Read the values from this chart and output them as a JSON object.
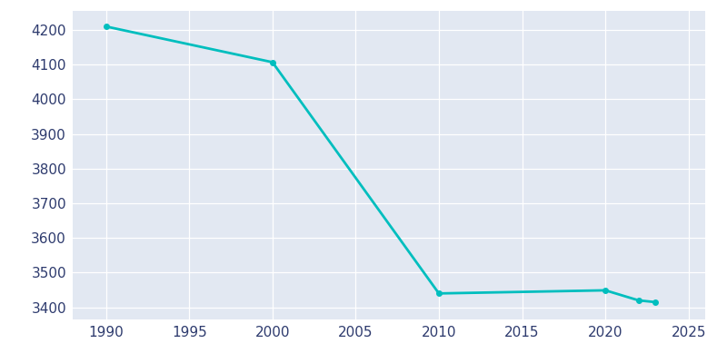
{
  "years": [
    1990,
    2000,
    2010,
    2020,
    2022,
    2023
  ],
  "population": [
    4210,
    4107,
    3440,
    3449,
    3420,
    3415
  ],
  "line_color": "#00BEBE",
  "marker_color": "#00BEBE",
  "figure_bg_color": "#FFFFFF",
  "plot_bg_color": "#E2E8F2",
  "text_color": "#2E3B6E",
  "xlim": [
    1988,
    2026
  ],
  "ylim": [
    3365,
    4255
  ],
  "xticks": [
    1990,
    1995,
    2000,
    2005,
    2010,
    2015,
    2020,
    2025
  ],
  "yticks": [
    3400,
    3500,
    3600,
    3700,
    3800,
    3900,
    4000,
    4100,
    4200
  ],
  "linewidth": 2.0,
  "markersize": 4
}
